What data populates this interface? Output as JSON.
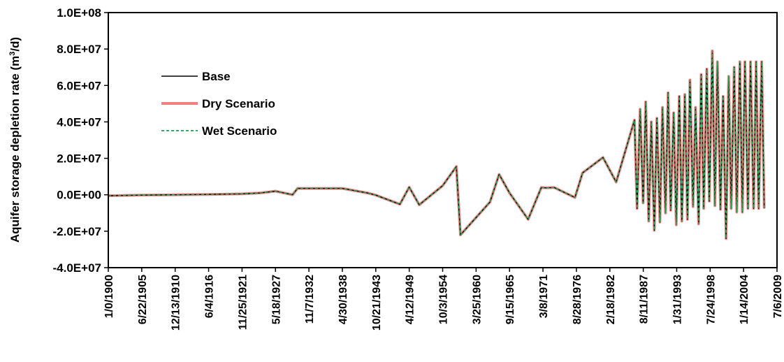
{
  "chart_data": {
    "type": "line",
    "ylabel_main": "Aquifer storage depletion rate (m",
    "ylabel_sup": "3",
    "ylabel_tail": "/d)",
    "xlabel": "",
    "xlim_days": [
      0,
      39996
    ],
    "ylim": [
      -40000000,
      100000000
    ],
    "y_ticks": [
      -40000000,
      -20000000,
      0,
      20000000,
      40000000,
      60000000,
      80000000,
      100000000
    ],
    "y_tick_labels": [
      "-4.0E+07",
      "-2.0E+07",
      "0.0E+00",
      "2.0E+07",
      "4.0E+07",
      "6.0E+07",
      "8.0E+07",
      "1.0E+08"
    ],
    "x_tick_labels": [
      "1/0/1900",
      "6/22/1905",
      "12/13/1910",
      "6/4/1916",
      "11/25/1921",
      "5/18/1927",
      "11/7/1932",
      "4/30/1938",
      "10/21/1943",
      "4/12/1949",
      "10/3/1954",
      "3/25/1960",
      "9/15/1965",
      "3/8/1971",
      "8/28/1976",
      "2/18/1982",
      "8/11/1987",
      "1/31/1993",
      "7/24/1998",
      "1/14/2004",
      "7/6/2009"
    ],
    "legend": {
      "position": "upper-left",
      "entries": [
        {
          "label": "Base",
          "color": "#000000",
          "style": "solid"
        },
        {
          "label": "Dry Scenario",
          "color": "#f08080",
          "style": "solid-thick"
        },
        {
          "label": "Wet Scenario",
          "color": "#1a9e4a",
          "style": "dashed"
        }
      ]
    },
    "x_dates": [
      "1900-01-01",
      "1905-06-22",
      "1910-12-13",
      "1916-06-04",
      "1921-11-25",
      "1924-12-01",
      "1927-05-18",
      "1930-03-01",
      "1931-01-01",
      "1938-04-30",
      "1942-06-01",
      "1943-10-21",
      "1947-10-01",
      "1949-04-12",
      "1950-12-01",
      "1954-10-03",
      "1957-01-01",
      "1957-09-01",
      "1962-07-01",
      "1964-01-01",
      "1965-09-15",
      "1968-10-01",
      "1970-12-01",
      "1971-09-01",
      "1973-01-01",
      "1976-06-01",
      "1977-09-01",
      "1981-01-01",
      "1983-03-01",
      "1986-03-01",
      "1986-08-01",
      "1987-02-01",
      "1987-08-01",
      "1988-01-01",
      "1988-07-01",
      "1988-12-01",
      "1989-06-01",
      "1989-11-01",
      "1990-05-01",
      "1990-10-01",
      "1991-04-01",
      "1991-09-01",
      "1992-02-01",
      "1992-08-01",
      "1993-01-01",
      "1993-07-01",
      "1993-12-01",
      "1994-06-01",
      "1994-11-01",
      "1995-04-01",
      "1995-10-01",
      "1996-03-01",
      "1996-09-01",
      "1997-02-01",
      "1997-07-01",
      "1998-01-01",
      "1998-06-01",
      "1998-12-01",
      "1999-05-01",
      "1999-10-01",
      "2000-04-01",
      "2000-09-01",
      "2001-03-01",
      "2001-08-01",
      "2002-01-01",
      "2002-07-01",
      "2002-12-01",
      "2003-06-01",
      "2003-11-01",
      "2004-04-01",
      "2004-10-01",
      "2005-03-01",
      "2005-09-01",
      "2006-02-01",
      "2006-07-01",
      "2007-01-01",
      "2007-06-01"
    ],
    "series": [
      {
        "name": "Base",
        "y": [
          -500000,
          -200000,
          0,
          200000,
          500000,
          1000000,
          2000000,
          0,
          3500000,
          3500000,
          1000000,
          -200000,
          -5200000,
          4200000,
          -5500000,
          5000000,
          15500000,
          -22000000,
          -4000000,
          11200000,
          1000000,
          -13500000,
          4000000,
          3800000,
          4000000,
          -1500000,
          12000000,
          20500000,
          7000000,
          41000000,
          -7500000,
          47000000,
          -4500000,
          51000000,
          -14500000,
          40000000,
          -19500000,
          42000000,
          -15000000,
          48000000,
          -10000000,
          56000000,
          -8500000,
          45000000,
          -16500000,
          54000000,
          -14500000,
          55000000,
          -13500000,
          63000000,
          -6500000,
          48000000,
          -16000000,
          66000000,
          -7500000,
          69000000,
          -3500000,
          79000000,
          -6000000,
          73000000,
          -8000000,
          54000000,
          -24000000,
          65000000,
          -7500000,
          70000000,
          -9500000,
          73000000,
          -9500000,
          73000000,
          -7500000,
          73000000,
          -7500000,
          73000000,
          -7500000,
          73000000,
          -7500000
        ]
      },
      {
        "name": "Dry Scenario",
        "y": [
          -500000,
          -200000,
          0,
          200000,
          500000,
          1000000,
          2000000,
          0,
          3500000,
          3500000,
          1000000,
          -200000,
          -5200000,
          4200000,
          -5500000,
          5000000,
          15500000,
          -22000000,
          -4000000,
          11200000,
          1000000,
          -13500000,
          4000000,
          3800000,
          4000000,
          -1500000,
          12000000,
          20500000,
          7000000,
          41000000,
          -7500000,
          47000000,
          -4500000,
          51000000,
          -14500000,
          40000000,
          -19500000,
          42000000,
          -15000000,
          48000000,
          -10000000,
          56000000,
          -8500000,
          45000000,
          -16500000,
          54000000,
          -14500000,
          55000000,
          -13500000,
          63000000,
          -6500000,
          48000000,
          -16000000,
          66000000,
          -7500000,
          69000000,
          -3500000,
          79000000,
          -6000000,
          73000000,
          -8000000,
          54000000,
          -24000000,
          65000000,
          -7500000,
          70000000,
          -9500000,
          73000000,
          -9500000,
          73000000,
          -7500000,
          73000000,
          -7500000,
          73000000,
          -7500000,
          73000000,
          -7500000
        ]
      },
      {
        "name": "Wet Scenario",
        "y": [
          -500000,
          -200000,
          0,
          200000,
          500000,
          1000000,
          2000000,
          0,
          3500000,
          3500000,
          1000000,
          -200000,
          -5200000,
          4200000,
          -5500000,
          5000000,
          15500000,
          -22000000,
          -4000000,
          11200000,
          1000000,
          -13500000,
          4000000,
          3800000,
          4000000,
          -1500000,
          12000000,
          20500000,
          7000000,
          41000000,
          -7500000,
          47000000,
          -4500000,
          51000000,
          -14500000,
          40000000,
          -19500000,
          42000000,
          -15000000,
          48000000,
          -10000000,
          56000000,
          -8500000,
          45000000,
          -16500000,
          54000000,
          -14500000,
          55000000,
          -13500000,
          63000000,
          -6500000,
          48000000,
          -16000000,
          66000000,
          -7500000,
          69000000,
          -3500000,
          79000000,
          -6000000,
          73000000,
          -8000000,
          54000000,
          -24000000,
          65000000,
          -7500000,
          70000000,
          -9500000,
          73000000,
          -9500000,
          73000000,
          -7500000,
          73000000,
          -7500000,
          73000000,
          -7500000,
          73000000,
          -7500000
        ]
      }
    ],
    "grid": false
  }
}
